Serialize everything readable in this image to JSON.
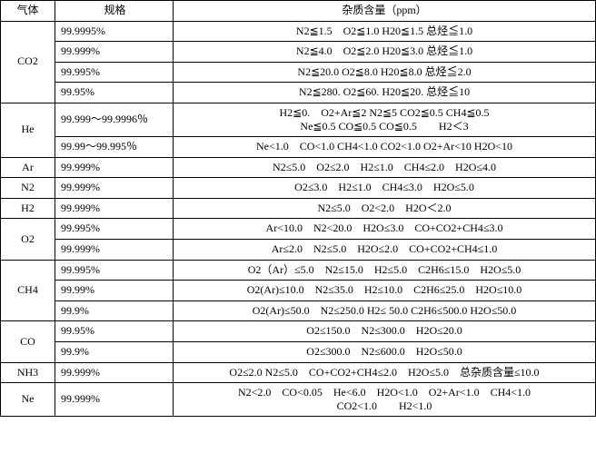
{
  "headers": {
    "gas": "气体",
    "spec": "规格",
    "impurity": "杂质含量（ppm）"
  },
  "rows": [
    {
      "gas": "CO2",
      "spec": "99.9995%",
      "impurity": "N2≦1.5　O2≦1.0 H20≦1.5 总烃≦1.0",
      "gasRowspan": 4
    },
    {
      "spec": "99.999%",
      "impurity": "N2≦4.0　O2≦2.0 H20≦3.0 总烃≦1.0"
    },
    {
      "spec": "99.995%",
      "impurity": "N2≦20.0 O2≦8.0 H20≦8.0 总烃≦2.0"
    },
    {
      "spec": "99.95%",
      "impurity": "N2≦280. O2≦60. H20≦20. 总烃≦10"
    },
    {
      "gas": "He",
      "spec": "99.999～99.9996％",
      "impurity": "H2≦0.　O2+Ar≦2 N2≦5 CO2≦0.5 CH4≦0.5\nNe≦0.5 CO≦0.5 CO≦0.5　　H2＜3",
      "gasRowspan": 2,
      "twoLine": true
    },
    {
      "spec": "99.99～99.995％",
      "impurity": "Ne<1.0　CO<1.0 CH4<1.0 CO2<1.0 O2+Ar<10 H2O<10"
    },
    {
      "gas": "Ar",
      "spec": "99.999%",
      "impurity": "N2≤5.0　O2≤2.0　H2≤1.0　CH4≤2.0　H2O≤4.0",
      "gasRowspan": 1
    },
    {
      "gas": "N2",
      "spec": "99.999%",
      "impurity": "O2≤3.0　H2≤1.0　CH4≤3.0　H2O≤5.0",
      "gasRowspan": 1
    },
    {
      "gas": "H2",
      "spec": "99.999%",
      "impurity": "N2≤5.0　O2<2.0　H2O＜2.0",
      "gasRowspan": 1
    },
    {
      "gas": "O2",
      "spec": "99.995%",
      "impurity": "Ar<10.0　N2<20.0　H2O≤3.0　CO+CO2+CH4≤3.0",
      "gasRowspan": 2
    },
    {
      "spec": "99.999%",
      "impurity": "Ar≤2.0　N2≤5.0　H2O≤2.0　CO+CO2+CH4≤1.0"
    },
    {
      "gas": "CH4",
      "spec": "99.995%",
      "impurity": "O2（Ar）≤5.0　N2≤15.0　H2≤5.0　C2H6≤15.0　H2O≤5.0",
      "gasRowspan": 3
    },
    {
      "spec": "99.99%",
      "impurity": "O2(Ar)≤10.0　N2≤35.0　H2≤10.0　C2H6≤25.0　H2O≤10.0"
    },
    {
      "spec": "99.9%",
      "impurity": "O2(Ar)≤50.0　N2≤250.0 H2≤ 50.0 C2H6≤500.0 H2O≤50.0"
    },
    {
      "gas": "CO",
      "spec": "99.95%",
      "impurity": "O2≤150.0　N2≤300.0　H2O≤20.0",
      "gasRowspan": 2
    },
    {
      "spec": "99.9%",
      "impurity": "O2≤300.0　N2≤600.0　H2O≤50.0"
    },
    {
      "gas": "NH3",
      "spec": "99.999%",
      "impurity": "O2≤2.0 N2≤5.0　CO+CO2+CH4≤2.0　H2O≤5.0　总杂质含量≤10.0",
      "gasRowspan": 1
    },
    {
      "gas": "Ne",
      "spec": "99.999%",
      "impurity": "N2<2.0　CO<0.05　He<6.0　H2O<1.0　O2+Ar<1.0　CH4<1.0\nCO2<1.0　　H2<1.0",
      "gasRowspan": 1,
      "twoLine": true
    }
  ]
}
